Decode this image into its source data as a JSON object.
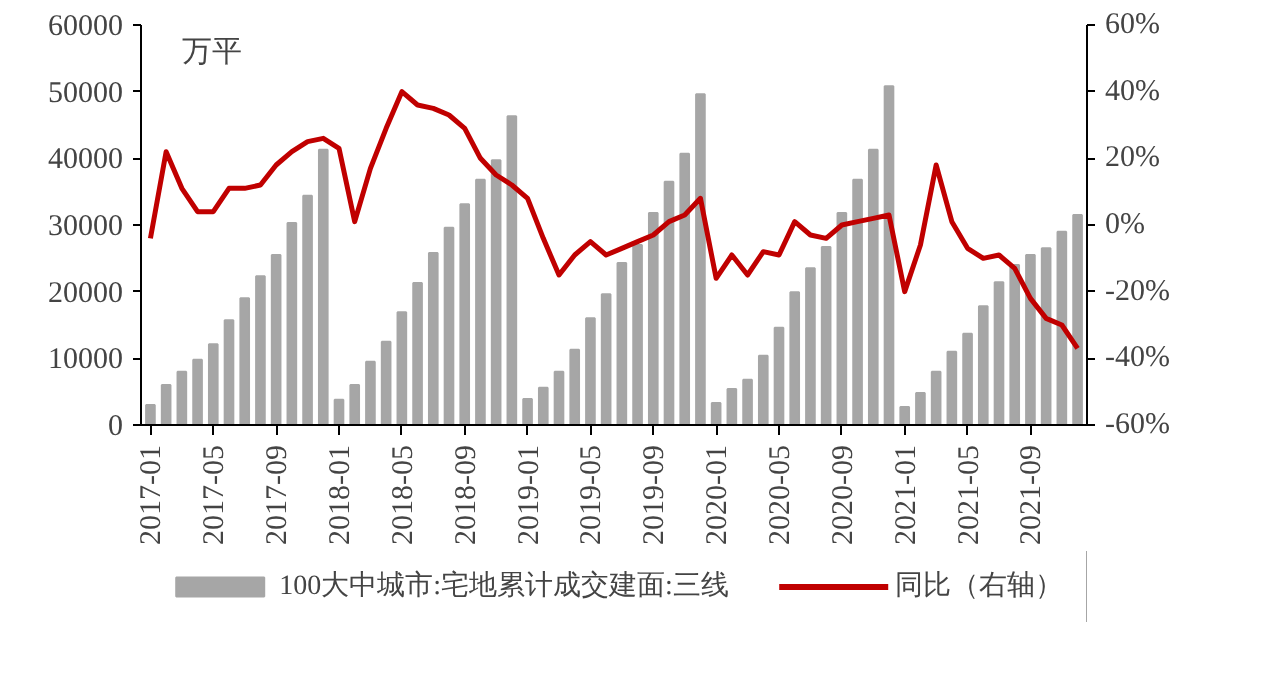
{
  "chart_data": {
    "type": "bar",
    "categories": [
      "2017-01",
      null,
      null,
      null,
      "2017-05",
      null,
      null,
      null,
      "2017-09",
      null,
      null,
      null,
      "2018-01",
      null,
      null,
      null,
      "2018-05",
      null,
      null,
      null,
      "2018-09",
      null,
      null,
      null,
      "2019-01",
      null,
      null,
      null,
      "2019-05",
      null,
      null,
      null,
      "2019-09",
      null,
      null,
      null,
      "2020-01",
      null,
      null,
      null,
      "2020-05",
      null,
      null,
      null,
      "2020-09",
      null,
      null,
      null,
      "2021-01",
      null,
      null,
      null,
      "2021-05",
      null,
      null,
      null,
      "2021-09",
      null,
      null,
      null
    ],
    "series": [
      {
        "name": "100大中城市:宅地累计成交建面:三线",
        "color": "#a6a6a6",
        "values": [
          3000,
          6000,
          8000,
          9800,
          12100,
          15700,
          19000,
          22300,
          25500,
          30300,
          34400,
          41300,
          3800,
          6000,
          9500,
          12500,
          16900,
          21300,
          25800,
          29600,
          33100,
          36800,
          39700,
          46300,
          3900,
          5600,
          8000,
          11300,
          16000,
          19600,
          24300,
          27000,
          31800,
          36500,
          40700,
          49600,
          3300,
          5400,
          6800,
          10400,
          14600,
          19900,
          23500,
          26700,
          31800,
          36800,
          41300,
          50800,
          2700,
          4800,
          8000,
          11000,
          13700,
          17800,
          21400,
          24000,
          25500,
          26500,
          29000,
          31500
        ]
      },
      {
        "name": "同比（右轴）",
        "type": "line",
        "axis": "y2",
        "color": "#c00000",
        "values": [
          -4,
          22,
          11,
          4,
          4,
          11,
          11,
          12,
          18,
          22,
          25,
          26,
          23,
          1,
          17,
          29,
          40,
          36,
          35,
          33,
          29,
          20,
          15,
          12,
          8,
          -4,
          -15,
          -9,
          -5,
          -9,
          -7,
          -5,
          -3,
          1,
          3,
          8,
          -16,
          -9,
          -15,
          -8,
          -9,
          1,
          -3,
          -4,
          0,
          1,
          2,
          3,
          -20,
          -6,
          18,
          1,
          -7,
          -10,
          -9,
          -13,
          -22,
          -28,
          -30,
          -37
        ]
      }
    ],
    "ylim": [
      0,
      60000
    ],
    "yticks": [
      0,
      10000,
      20000,
      30000,
      40000,
      50000,
      60000
    ],
    "y2lim": [
      -60,
      60
    ],
    "y2ticks": [
      {
        "value": -60,
        "label": "-60%"
      },
      {
        "value": -40,
        "label": "-40%"
      },
      {
        "value": -20,
        "label": "-20%"
      },
      {
        "value": 0,
        "label": "0%"
      },
      {
        "value": 20,
        "label": "20%"
      },
      {
        "value": 40,
        "label": "40%"
      },
      {
        "value": 60,
        "label": "60%"
      }
    ],
    "annotations": [
      "万平"
    ],
    "grid": false,
    "legend": "bottom"
  }
}
